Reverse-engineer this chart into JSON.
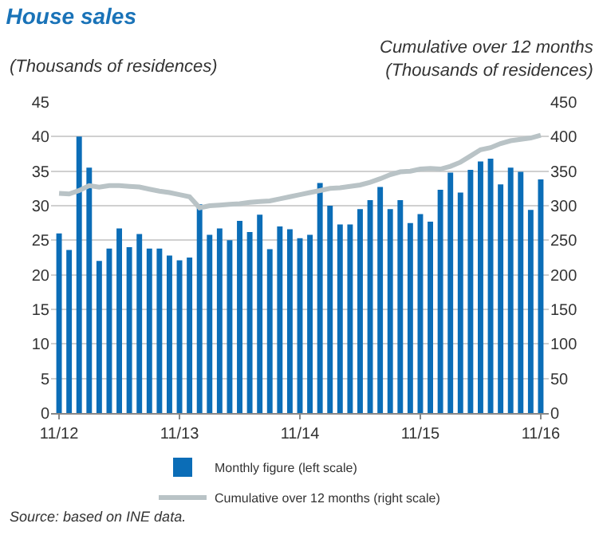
{
  "chart_data": {
    "type": "bar",
    "title": "House sales",
    "subtitle": "(Thousands of residences)",
    "y2label": "Cumulative over 12 months\n(Thousands of residences)",
    "categories": [
      "11/12",
      null,
      null,
      null,
      null,
      null,
      null,
      null,
      null,
      null,
      null,
      null,
      "11/13",
      null,
      null,
      null,
      null,
      null,
      null,
      null,
      null,
      null,
      null,
      null,
      "11/14",
      null,
      null,
      null,
      null,
      null,
      null,
      null,
      null,
      null,
      null,
      null,
      "11/15",
      null,
      null,
      null,
      null,
      null,
      null,
      null,
      null,
      null,
      null,
      null,
      "11/16"
    ],
    "series": [
      {
        "name": "Monthly figure (left scale)",
        "color": "#0b6db7",
        "values": [
          26,
          23.6,
          40,
          35.5,
          22,
          23.8,
          26.7,
          24,
          25.9,
          23.8,
          23.8,
          22.8,
          22.1,
          22.5,
          30.2,
          25.8,
          26.7,
          25,
          27.8,
          26.2,
          28.7,
          23.7,
          27,
          26.6,
          25.3,
          25.8,
          33.3,
          30,
          27.3,
          27.3,
          29.5,
          30.8,
          32.7,
          29.5,
          30.8,
          27.5,
          28.8,
          27.7,
          32.3,
          34.8,
          31.9,
          35.2,
          36.4,
          36.8,
          33.1,
          35.5,
          34.9,
          29.4,
          33.8
        ]
      },
      {
        "name": "Cumulative over 12 months (right scale)",
        "type": "line",
        "axis": "y2",
        "color": "#b9c3c6",
        "values": [
          318,
          317,
          322,
          329,
          327,
          329,
          329,
          328,
          327,
          324,
          321,
          319,
          316,
          313,
          297,
          300,
          301,
          302,
          303,
          305,
          306,
          307,
          310,
          313,
          316,
          319,
          322,
          325,
          326,
          328,
          330,
          334,
          339,
          345,
          349,
          350,
          353,
          354,
          353,
          357,
          363,
          372,
          381,
          384,
          390,
          394,
          396,
          398,
          402
        ]
      }
    ],
    "ylim": [
      0,
      45
    ],
    "yticks": [
      0,
      5,
      10,
      15,
      20,
      25,
      30,
      35,
      40,
      45
    ],
    "y2lim": [
      0,
      450
    ],
    "y2ticks": [
      0,
      50,
      100,
      150,
      200,
      250,
      300,
      350,
      400,
      450
    ],
    "grid": "y",
    "legend": "bottom",
    "annotations": [
      "Source: based on INE data."
    ]
  }
}
